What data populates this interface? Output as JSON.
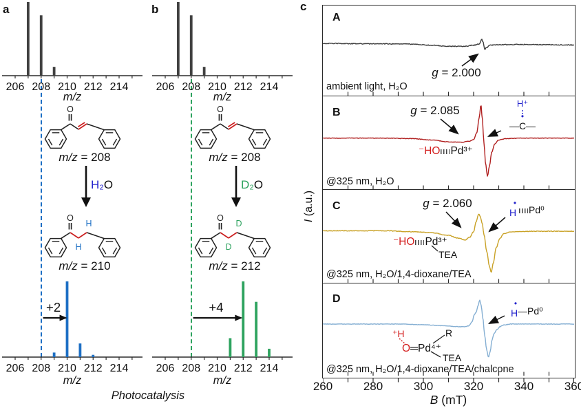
{
  "colors": {
    "bar_gray": "#414141",
    "blue": "#1d6fc4",
    "green": "#2ea35f",
    "epr_a": "#3c3c3c",
    "epr_b": "#b01f1f",
    "epr_c": "#c9a227",
    "epr_d": "#85afd3",
    "ann_blue": "#2222cc",
    "ann_red": "#d42020",
    "accent_bond_red": "#cc2222"
  },
  "labels": {
    "panel_a": "a",
    "panel_b": "b",
    "panel_c": "c",
    "photocatalysis": "Photocatalysis",
    "mz_axis": "m/z",
    "b_axis_sym": "B",
    "b_axis_rest": " (mT)",
    "i_axis_sym": "I",
    "i_axis_rest": " (a.u.)"
  },
  "scheme_a": {
    "o_atom": "O",
    "reactant_mz_sym": "m/z",
    "reactant_mz_eq": " = 208",
    "reagent_main": "H₂",
    "reagent_o": "O",
    "h_top": "H",
    "h_bottom": "H",
    "product_mz_sym": "m/z",
    "product_mz_eq": " = 210"
  },
  "scheme_b": {
    "o_atom": "O",
    "reactant_mz_sym": "m/z",
    "reactant_mz_eq": " = 208",
    "reagent_main": "D₂",
    "reagent_o": "O",
    "h_top": "D",
    "h_bottom": "D",
    "product_mz_sym": "m/z",
    "product_mz_eq": " = 212"
  },
  "epr_annotations": {
    "a": {
      "panel": "A",
      "g_sym": "g",
      "g_val": " = 2.000",
      "condition": "ambient light, H₂O"
    },
    "b": {
      "panel": "B",
      "g_sym": "g",
      "g_val": " = 2.085",
      "condition": "@325 nm, H₂O",
      "h_plus": "H⁺",
      "radical_dot": "•",
      "c_group": "—C—",
      "ho": "⁻HO",
      "pd": "Pd³⁺"
    },
    "c": {
      "panel": "C",
      "g_sym": "g",
      "g_val": " = 2.060",
      "condition": "@325 nm, H₂O/1,4-dioxane/TEA",
      "radical_dot": "•",
      "h_atom": "H",
      "pd0": "Pd⁰",
      "ho": "⁻HO",
      "pd": "Pd³⁺",
      "tea": "TEA"
    },
    "d": {
      "panel": "D",
      "condition": "@325 nm, H₂O/1,4-dioxane/TEA/chalcone",
      "radical_dot": "•",
      "h_atom": "H",
      "pd0": "—Pd⁰",
      "h_plus": "⁺H",
      "o_atom": "O",
      "pd4": "═Pd⁴⁺",
      "r_group": "R",
      "tea": "TEA"
    }
  },
  "chart_data": [
    {
      "id": "ms-reactant-a",
      "type": "bar",
      "panel": "a",
      "xlabel": "m/z",
      "xlim": [
        205,
        215.5
      ],
      "xticks": [
        206,
        208,
        210,
        212,
        214
      ],
      "ylim": [
        0,
        1
      ],
      "color_key": "bar_gray",
      "marker_line_x": 208,
      "bars": [
        [
          207,
          1.0
        ],
        [
          208,
          0.82
        ],
        [
          209,
          0.12
        ]
      ]
    },
    {
      "id": "ms-product-a",
      "type": "bar",
      "panel": "a",
      "xlabel": "m/z",
      "xlim": [
        205,
        215.5
      ],
      "xticks": [
        206,
        208,
        210,
        212,
        214
      ],
      "ylim": [
        0,
        1
      ],
      "color_key": "blue",
      "marker_line_x": 208,
      "bars": [
        [
          209,
          0.06
        ],
        [
          210,
          1.0
        ],
        [
          211,
          0.18
        ],
        [
          212,
          0.03
        ]
      ],
      "shift": {
        "label": "+2",
        "from": 208.15,
        "to": 209.95
      }
    },
    {
      "id": "ms-reactant-b",
      "type": "bar",
      "panel": "b",
      "xlabel": "m/z",
      "xlim": [
        205,
        215.5
      ],
      "xticks": [
        206,
        208,
        210,
        212,
        214
      ],
      "ylim": [
        0,
        1
      ],
      "color_key": "bar_gray",
      "marker_line_x": 208,
      "bars": [
        [
          207,
          1.0
        ],
        [
          208,
          0.82
        ],
        [
          209,
          0.12
        ]
      ]
    },
    {
      "id": "ms-product-b",
      "type": "bar",
      "panel": "b",
      "xlabel": "m/z",
      "xlim": [
        205,
        215.5
      ],
      "xticks": [
        206,
        208,
        210,
        212,
        214
      ],
      "ylim": [
        0,
        1
      ],
      "color_key": "green",
      "marker_line_x": 208,
      "bars": [
        [
          211,
          0.25
        ],
        [
          212,
          1.0
        ],
        [
          213,
          0.73
        ],
        [
          214,
          0.11
        ]
      ],
      "shift": {
        "label": "+4",
        "from": 208.15,
        "to": 211.9
      }
    },
    {
      "id": "epr",
      "type": "line",
      "xlabel": "B (mT)",
      "ylabel": "I (a.u.)",
      "xlim": [
        260,
        360
      ],
      "xticks": [
        260,
        280,
        300,
        320,
        340,
        360
      ],
      "minor_tick_mT": 10,
      "panels": [
        {
          "label": "A",
          "color_key": "epr_a",
          "g": 2.0,
          "condition": "ambient light, H₂O",
          "baseline": 0.42,
          "noise": 0.01,
          "anchors": [
            [
              260,
              0
            ],
            [
              280,
              -0.005
            ],
            [
              295,
              -0.008
            ],
            [
              303,
              -0.02
            ],
            [
              310,
              -0.032
            ],
            [
              316,
              -0.034
            ],
            [
              320,
              -0.02
            ],
            [
              322.3,
              -0.005
            ],
            [
              323.2,
              0.045
            ],
            [
              323.8,
              0.01
            ],
            [
              324.4,
              -0.067
            ],
            [
              325.2,
              -0.045
            ],
            [
              326.5,
              -0.02
            ],
            [
              330,
              -0.015
            ],
            [
              340,
              -0.012
            ],
            [
              350,
              -0.015
            ],
            [
              360,
              -0.018
            ]
          ]
        },
        {
          "label": "B",
          "color_key": "epr_b",
          "g": 2.085,
          "condition": "@325 nm, H₂O",
          "baseline": 0.45,
          "noise": 0.006,
          "anchors": [
            [
              260,
              0
            ],
            [
              285,
              0
            ],
            [
              295,
              -0.005
            ],
            [
              303,
              -0.02
            ],
            [
              310,
              -0.04
            ],
            [
              315,
              -0.045
            ],
            [
              318,
              -0.035
            ],
            [
              320,
              -0.015
            ],
            [
              321.3,
              0.06
            ],
            [
              322.2,
              0.22
            ],
            [
              322.9,
              0.36
            ],
            [
              323.5,
              0.2
            ],
            [
              324.1,
              -0.05
            ],
            [
              324.8,
              -0.28
            ],
            [
              325.5,
              -0.41
            ],
            [
              326.3,
              -0.3
            ],
            [
              327.2,
              -0.15
            ],
            [
              328.5,
              -0.06
            ],
            [
              330,
              -0.02
            ],
            [
              333,
              -0.005
            ],
            [
              340,
              0
            ],
            [
              360,
              0
            ]
          ]
        },
        {
          "label": "C",
          "color_key": "epr_c",
          "g": 2.06,
          "condition": "@325 nm, H₂O/1,4-dioxane/TEA",
          "baseline": 0.44,
          "noise": 0.008,
          "anchors": [
            [
              260,
              0
            ],
            [
              285,
              0
            ],
            [
              295,
              -0.01
            ],
            [
              303,
              -0.02
            ],
            [
              310,
              -0.05
            ],
            [
              314,
              -0.08
            ],
            [
              316.5,
              -0.1
            ],
            [
              318.5,
              -0.07
            ],
            [
              320,
              -0.01
            ],
            [
              321,
              0.1
            ],
            [
              322,
              0.18
            ],
            [
              322.7,
              0.15
            ],
            [
              323.4,
              0.08
            ],
            [
              324.2,
              -0.05
            ],
            [
              325.2,
              -0.22
            ],
            [
              326.3,
              -0.38
            ],
            [
              327,
              -0.45
            ],
            [
              327.8,
              -0.35
            ],
            [
              329,
              -0.18
            ],
            [
              330.5,
              -0.08
            ],
            [
              332,
              -0.03
            ],
            [
              335,
              -0.01
            ],
            [
              345,
              -0.005
            ],
            [
              360,
              -0.005
            ]
          ]
        },
        {
          "label": "D",
          "color_key": "epr_d",
          "g": null,
          "condition": "@325 nm, H₂O/1,4-dioxane/TEA/chalcone",
          "baseline": 0.44,
          "noise": 0.006,
          "anchors": [
            [
              260,
              0
            ],
            [
              290,
              0
            ],
            [
              300,
              -0.008
            ],
            [
              308,
              -0.018
            ],
            [
              313,
              -0.028
            ],
            [
              316,
              -0.03
            ],
            [
              318,
              -0.02
            ],
            [
              319.3,
              0.02
            ],
            [
              320.3,
              0.1
            ],
            [
              321,
              0.13
            ],
            [
              321.8,
              0.2
            ],
            [
              322.4,
              0.26
            ],
            [
              323,
              0.2
            ],
            [
              323.7,
              0.06
            ],
            [
              324.4,
              -0.12
            ],
            [
              325.2,
              -0.28
            ],
            [
              325.9,
              -0.36
            ],
            [
              326.6,
              -0.3
            ],
            [
              327.3,
              -0.17
            ],
            [
              328.2,
              -0.1
            ],
            [
              329.3,
              -0.06
            ],
            [
              330.5,
              -0.028
            ],
            [
              332,
              -0.01
            ],
            [
              335,
              0
            ],
            [
              360,
              0
            ]
          ]
        }
      ]
    }
  ]
}
